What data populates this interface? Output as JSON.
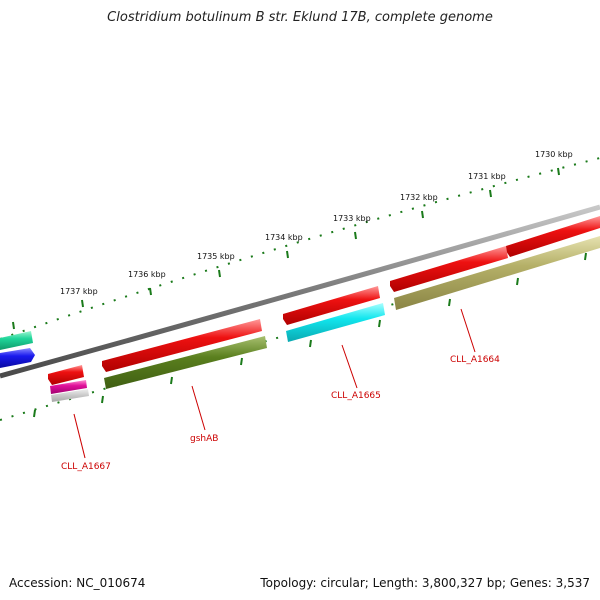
{
  "title": "Clostridium botulinum B str. Eklund 17B, complete genome",
  "footer": {
    "accession": "Accession: NC_010674",
    "summary": "Topology: circular; Length: 3,800,327 bp; Genes: 3,537"
  },
  "colors": {
    "backbone": "#7a7a7a",
    "tick": "#1a7a1a",
    "label": "#cc0000",
    "red_gene": "#ee1111",
    "olive_gene": "#5a7f1e",
    "khaki_gene": "#b5b068",
    "cyan_gene": "#11e6ee",
    "teal_gene": "#1fd69a",
    "blue_gene": "#1a1aee",
    "magenta_gene": "#e0109a"
  },
  "scale": {
    "labels": [
      "1730 kbp",
      "1731 kbp",
      "1732 kbp",
      "1733 kbp",
      "1734 kbp",
      "1735 kbp",
      "1736 kbp",
      "1737 kbp"
    ]
  },
  "genes": {
    "labels": [
      "CLL_A1664",
      "CLL_A1665",
      "gshAB",
      "CLL_A1667"
    ]
  }
}
